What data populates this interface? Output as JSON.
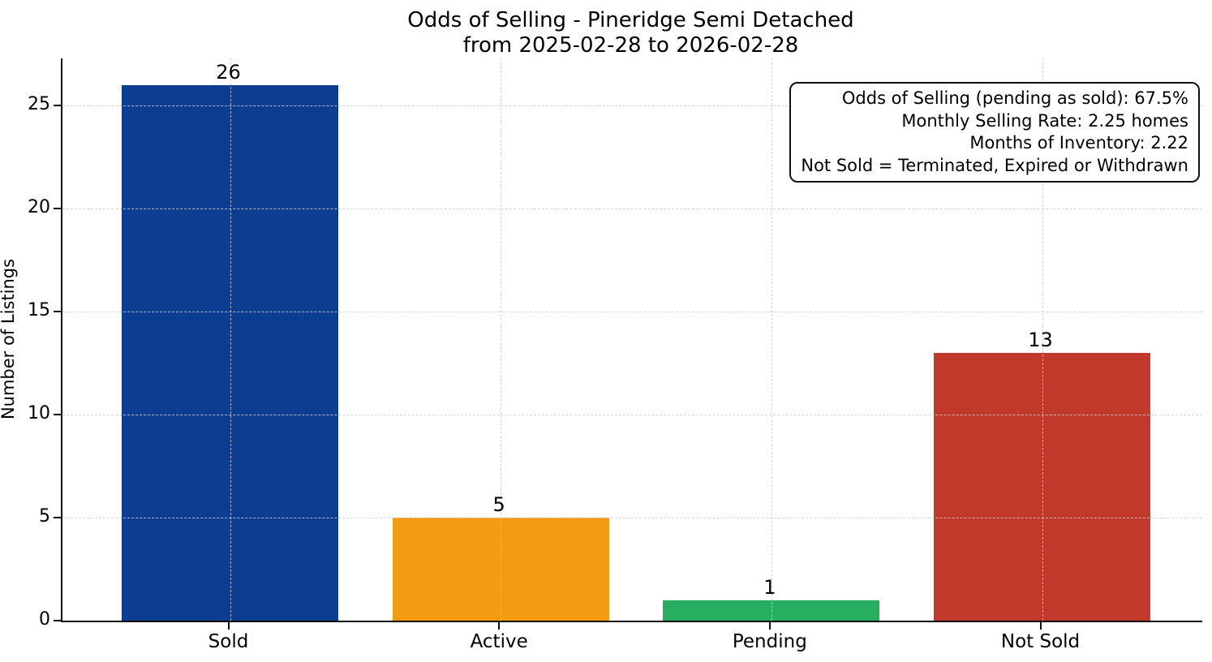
{
  "chart_data": {
    "type": "bar",
    "title": "Odds of Selling - Pineridge Semi Detached",
    "subtitle": "from 2025-02-28 to 2026-02-28",
    "categories": [
      "Sold",
      "Active",
      "Pending",
      "Not Sold"
    ],
    "values": [
      26,
      5,
      1,
      13
    ],
    "bar_colors": [
      "#0d3d91",
      "#f39c12",
      "#27ae60",
      "#c0392b"
    ],
    "value_labels": [
      "26",
      "5",
      "1",
      "13"
    ],
    "xlabel": "",
    "ylabel": "Number of Listings",
    "ylim": [
      0,
      27.3
    ],
    "yticks": [
      0,
      5,
      10,
      15,
      20,
      25
    ],
    "grid": "dashed, horizontal at yticks and vertical at category centers, drawn over bars",
    "legend": "none",
    "annotation": {
      "position": "top-right",
      "lines": [
        "Odds of Selling (pending as sold): 67.5%",
        "Monthly Selling Rate: 2.25 homes",
        "Months of Inventory: 2.22",
        "Not Sold = Terminated, Expired or Withdrawn"
      ]
    },
    "colors": {
      "background": "#ffffff",
      "axis": "#111111",
      "text": "#000000",
      "grid": "#cdcdcd"
    }
  }
}
